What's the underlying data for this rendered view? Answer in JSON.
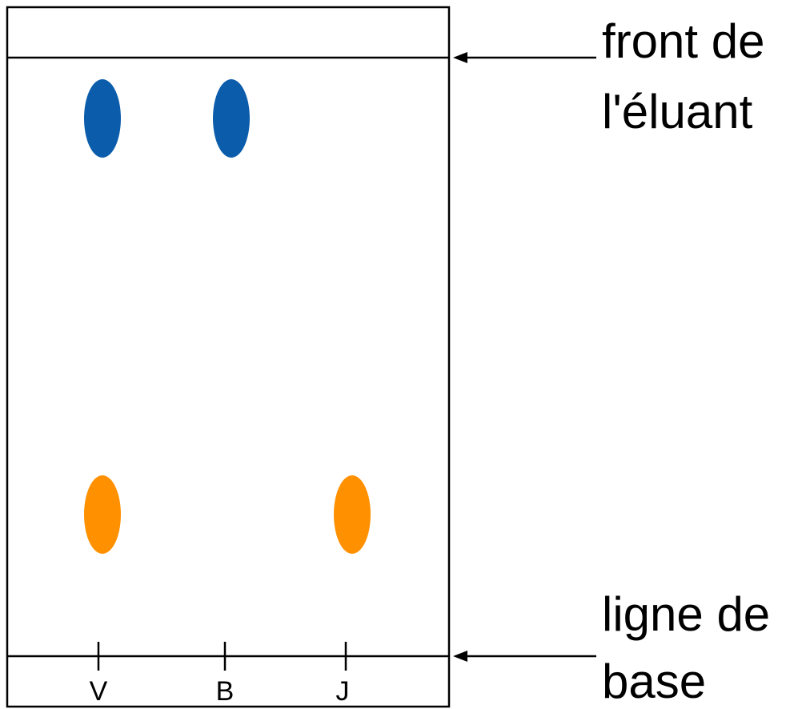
{
  "colors": {
    "spot_blue": "#0b5dac",
    "spot_orange": "#ff9000",
    "line": "#000000",
    "background": "#ffffff"
  },
  "labels": {
    "solvent_front_line1": "front de",
    "solvent_front_line2": "l'éluant",
    "baseline_line1": "ligne de",
    "baseline_line2": "base"
  },
  "lanes": [
    {
      "label": "V",
      "spots": [
        "spot_blue",
        "spot_orange"
      ]
    },
    {
      "label": "B",
      "spots": [
        "spot_blue"
      ]
    },
    {
      "label": "J",
      "spots": [
        "spot_orange"
      ]
    }
  ]
}
